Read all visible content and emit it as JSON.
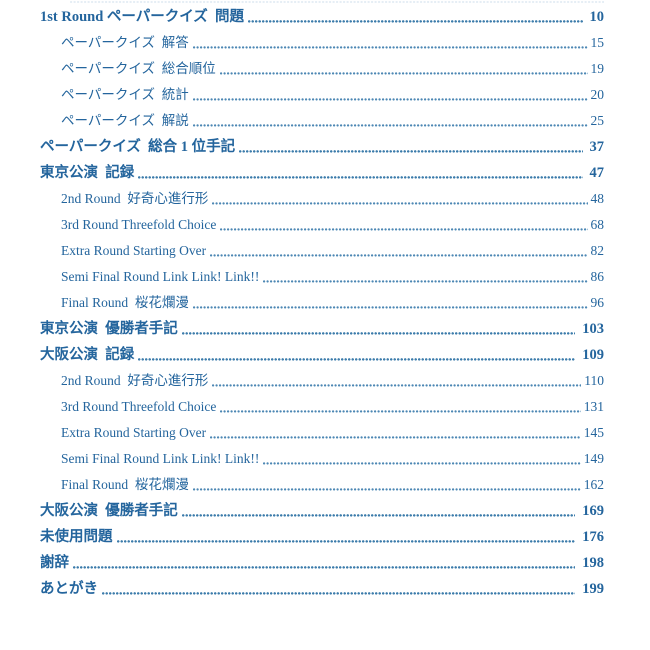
{
  "page": {
    "background_color": "#ffffff",
    "text_color": "#24659d",
    "leader_dot_color": "#4e88b4"
  },
  "toc": {
    "entries": [
      {
        "title": "1st Round ペーパークイズ  問題",
        "page": "10",
        "level": 1
      },
      {
        "title": "ペーパークイズ  解答",
        "page": "15",
        "level": 2
      },
      {
        "title": "ペーパークイズ  総合順位",
        "page": "19",
        "level": 2
      },
      {
        "title": "ペーパークイズ  統計",
        "page": "20",
        "level": 2
      },
      {
        "title": "ペーパークイズ  解説",
        "page": "25",
        "level": 2
      },
      {
        "title": "ペーパークイズ  総合 1 位手記",
        "page": "37",
        "level": 1
      },
      {
        "title": "東京公演  記録",
        "page": "47",
        "level": 1
      },
      {
        "title": "2nd Round  好奇心進行形",
        "page": "48",
        "level": 2
      },
      {
        "title": "3rd Round Threefold Choice",
        "page": "68",
        "level": 2
      },
      {
        "title": "Extra Round Starting Over",
        "page": "82",
        "level": 2
      },
      {
        "title": "Semi Final Round Link Link! Link!!",
        "page": "86",
        "level": 2
      },
      {
        "title": "Final Round  桜花爛漫",
        "page": "96",
        "level": 2
      },
      {
        "title": "東京公演  優勝者手記",
        "page": "103",
        "level": 1
      },
      {
        "title": "大阪公演  記録",
        "page": "109",
        "level": 1
      },
      {
        "title": "2nd Round  好奇心進行形",
        "page": "110",
        "level": 2
      },
      {
        "title": "3rd Round Threefold Choice",
        "page": "131",
        "level": 2
      },
      {
        "title": "Extra Round Starting Over",
        "page": "145",
        "level": 2
      },
      {
        "title": "Semi Final Round Link Link! Link!!",
        "page": "149",
        "level": 2
      },
      {
        "title": "Final Round  桜花爛漫",
        "page": "162",
        "level": 2
      },
      {
        "title": "大阪公演  優勝者手記",
        "page": "169",
        "level": 1
      },
      {
        "title": "未使用問題",
        "page": "176",
        "level": 1
      },
      {
        "title": "謝辞",
        "page": "198",
        "level": 1
      },
      {
        "title": "あとがき",
        "page": "199",
        "level": 1
      }
    ]
  }
}
